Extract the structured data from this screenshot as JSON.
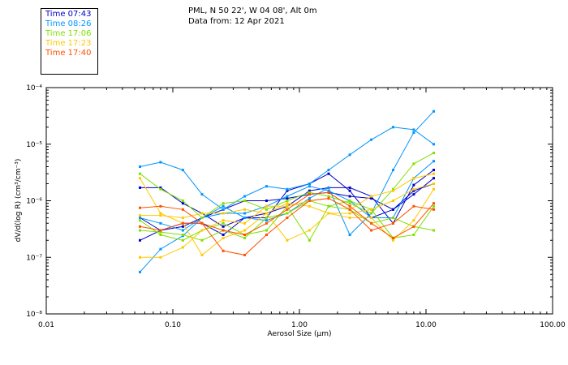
{
  "header": {
    "line1": "PML, N 50 22', W 04 08', Alt 0m",
    "line2": "Data from: 12 Apr 2021"
  },
  "chart_data": {
    "type": "line",
    "xlabel": "Aerosol Size (µm)",
    "ylabel": "dV/d(log R) (cm³/cm⁻³)",
    "x_scale": "log",
    "y_scale": "log",
    "xlim": [
      0.01,
      100
    ],
    "ylim": [
      1e-08,
      0.0001
    ],
    "x_ticks": [
      0.01,
      0.1,
      1,
      10,
      100
    ],
    "x_tick_labels": [
      "0.01",
      "0.10",
      "1.00",
      "10.00",
      "100.00"
    ],
    "y_ticks": [
      1e-08,
      1e-07,
      1e-06,
      1e-05,
      0.0001
    ],
    "y_tick_labels": [
      "10⁻⁸",
      "10⁻⁷",
      "10⁻⁶",
      "10⁻⁵",
      "10⁻⁴"
    ],
    "grid": false,
    "legend_position": "top-left",
    "x": [
      0.055,
      0.08,
      0.12,
      0.17,
      0.25,
      0.37,
      0.55,
      0.8,
      1.2,
      1.7,
      2.5,
      3.7,
      5.5,
      8,
      11.5
    ],
    "series": [
      {
        "name": "Time 07:43",
        "color": "#0000c8",
        "values": [
          2e-07,
          3e-07,
          3.5e-07,
          5e-07,
          7e-07,
          1e-06,
          1e-06,
          1.1e-06,
          1.3e-06,
          1.4e-06,
          1.2e-06,
          1.1e-06,
          7e-07,
          1.3e-06,
          2.5e-06
        ]
      },
      {
        "name": "Time 07:43",
        "color": "#0000c8",
        "values": [
          1.7e-06,
          1.7e-06,
          9e-07,
          6e-07,
          3.5e-07,
          5e-07,
          6e-07,
          8e-07,
          1.5e-06,
          1.7e-06,
          1.7e-06,
          1.2e-06,
          4e-07,
          1.9e-06,
          3.5e-06
        ]
      },
      {
        "name": "Time 07:43",
        "color": "#0000c8",
        "values": [
          5e-07,
          3e-07,
          4e-07,
          4e-07,
          2.5e-07,
          5e-07,
          5e-07,
          1.5e-06,
          2e-06,
          3e-06,
          1.5e-06,
          5e-07,
          7e-07,
          1.5e-06,
          2e-06
        ]
      },
      {
        "name": "Time 08:26",
        "color": "#0096ff",
        "values": [
          4e-06,
          4.8e-06,
          3.5e-06,
          1.3e-06,
          7e-07,
          1.2e-06,
          1.8e-06,
          1.6e-06,
          2e-06,
          3.5e-06,
          6.5e-06,
          1.2e-05,
          2e-05,
          1.8e-05,
          1e-05
        ]
      },
      {
        "name": "Time 08:26",
        "color": "#0096ff",
        "values": [
          5.5e-08,
          1.4e-07,
          2.4e-07,
          5e-07,
          8e-07,
          5e-07,
          4.5e-07,
          6e-07,
          1.1e-06,
          1.7e-06,
          2.5e-07,
          6e-07,
          3.5e-06,
          1.6e-05,
          3.8e-05
        ]
      },
      {
        "name": "Time 08:26",
        "color": "#0096ff",
        "values": [
          5e-07,
          4e-07,
          3e-07,
          5e-07,
          6e-07,
          6e-07,
          8e-07,
          1.2e-06,
          1.8e-06,
          1.5e-06,
          1e-06,
          5e-07,
          5e-07,
          2.5e-06,
          5e-06
        ]
      },
      {
        "name": "Time 17:06",
        "color": "#80e000",
        "values": [
          3e-06,
          1.6e-06,
          1e-06,
          5e-07,
          9e-07,
          1e-06,
          7e-07,
          1e-06,
          1.4e-06,
          1.2e-06,
          9e-07,
          6e-07,
          1.6e-06,
          4.5e-06,
          7e-06
        ]
      },
      {
        "name": "Time 17:06",
        "color": "#80e000",
        "values": [
          4.5e-07,
          2.5e-07,
          2e-07,
          3e-07,
          4e-07,
          2.5e-07,
          3e-07,
          8e-07,
          2e-07,
          8e-07,
          1e-06,
          7e-07,
          2.2e-07,
          2.5e-07,
          8e-07
        ]
      },
      {
        "name": "Time 17:06",
        "color": "#80e000",
        "values": [
          3e-07,
          2.8e-07,
          2.5e-07,
          2e-07,
          3e-07,
          2.2e-07,
          5e-07,
          6e-07,
          1e-06,
          8e-07,
          7e-07,
          4e-07,
          5e-07,
          3.5e-07,
          3e-07
        ]
      },
      {
        "name": "Time 17:23",
        "color": "#ffc800",
        "values": [
          2.5e-06,
          6e-07,
          4e-07,
          1.1e-07,
          2.2e-07,
          3e-07,
          6e-07,
          2e-07,
          3e-07,
          6e-07,
          5e-07,
          5e-07,
          2e-07,
          4.5e-07,
          1.6e-06
        ]
      },
      {
        "name": "Time 17:23",
        "color": "#ffc800",
        "values": [
          1e-07,
          1e-07,
          1.5e-07,
          3e-07,
          4.5e-07,
          4e-07,
          8e-07,
          8e-07,
          1e-06,
          1.1e-06,
          7e-07,
          1.2e-06,
          1.5e-06,
          2.5e-06,
          3e-06
        ]
      },
      {
        "name": "Time 17:23",
        "color": "#ffc800",
        "values": [
          5.5e-07,
          5.5e-07,
          5e-07,
          6e-07,
          6e-07,
          7e-07,
          6e-07,
          9e-07,
          8e-07,
          6e-07,
          6e-07,
          7e-07,
          1e-06,
          1.6e-06,
          2e-06
        ]
      },
      {
        "name": "Time 17:40",
        "color": "#ff5000",
        "values": [
          7.5e-07,
          8e-07,
          7e-07,
          4e-07,
          1.3e-07,
          1.1e-07,
          2.5e-07,
          5e-07,
          1e-06,
          1.1e-06,
          7e-07,
          3e-07,
          4e-07,
          8e-07,
          7e-07
        ]
      },
      {
        "name": "Time 17:40",
        "color": "#ff5000",
        "values": [
          3.5e-07,
          3e-07,
          4e-07,
          4e-07,
          3e-07,
          2.5e-07,
          4e-07,
          7e-07,
          1.3e-06,
          1.4e-06,
          8e-07,
          4e-07,
          2.2e-07,
          3.5e-07,
          9e-07
        ]
      }
    ]
  },
  "legend": [
    {
      "label": "Time 07:43",
      "color": "#0000c8"
    },
    {
      "label": "Time 08:26",
      "color": "#0096ff"
    },
    {
      "label": "Time 17:06",
      "color": "#80e000"
    },
    {
      "label": "Time 17:23",
      "color": "#ffc800"
    },
    {
      "label": "Time 17:40",
      "color": "#ff5000"
    }
  ]
}
